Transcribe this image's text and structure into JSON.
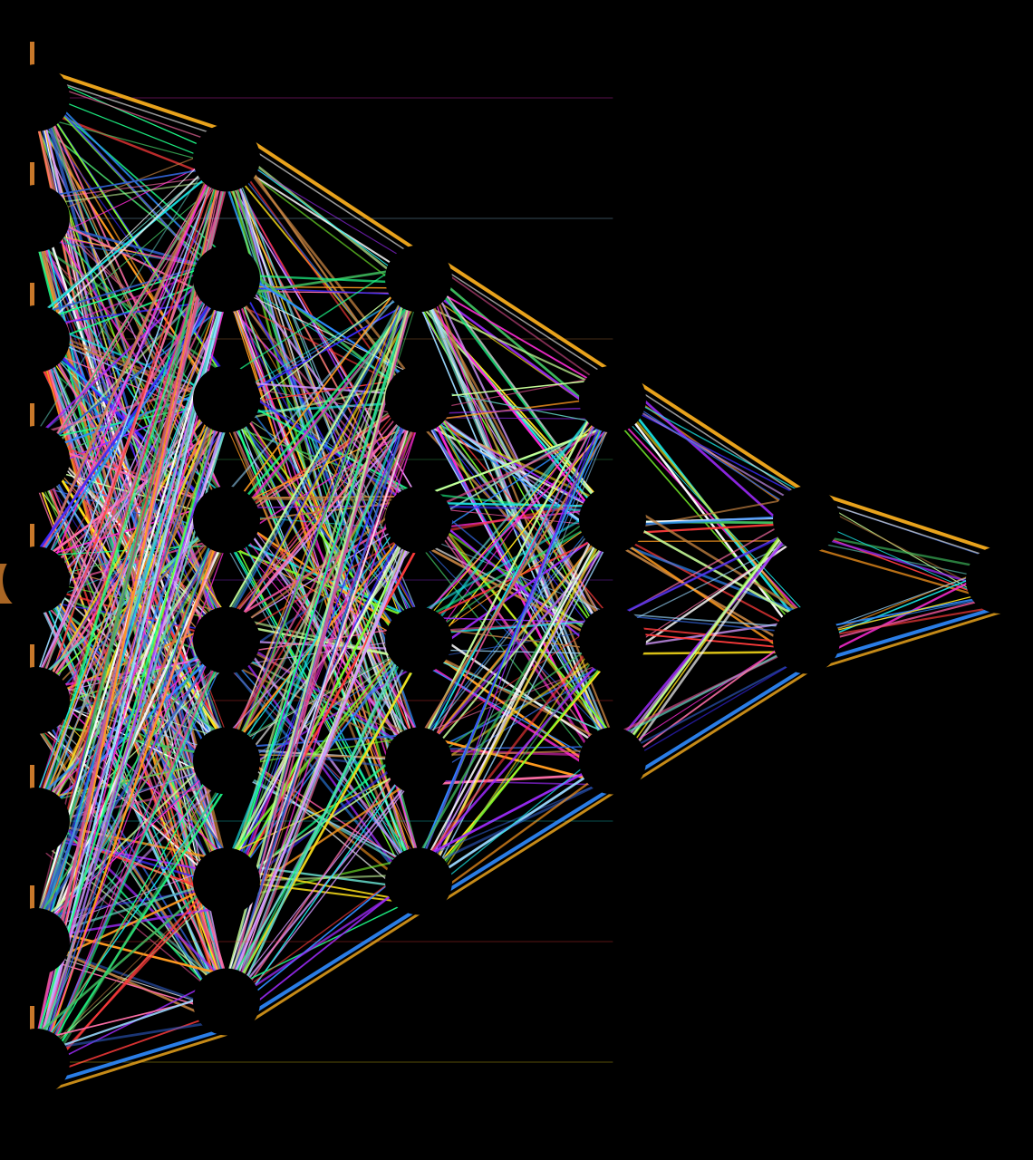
{
  "diagram": {
    "type": "neural-network",
    "background_color": "#000000",
    "node_color": "#000000",
    "layers": [
      {
        "index": 0,
        "node_count": 9
      },
      {
        "index": 1,
        "node_count": 8
      },
      {
        "index": 2,
        "node_count": 6
      },
      {
        "index": 3,
        "node_count": 4
      },
      {
        "index": 4,
        "node_count": 2
      },
      {
        "index": 5,
        "node_count": 1
      }
    ],
    "connection_style": "fully-connected",
    "edge_palette": [
      "#ff3b3b",
      "#ff9a1f",
      "#ffe21a",
      "#7dff2e",
      "#1eff8a",
      "#19e6e6",
      "#2f8bff",
      "#3b2bff",
      "#a02bff",
      "#ff2bd6",
      "#ff6fa8",
      "#ffffff",
      "#c8ff9a",
      "#9ad8ff",
      "#d49aff",
      "#40c060",
      "#e05090",
      "#3060d0",
      "#c08040",
      "#60d0c0"
    ],
    "accent_edge_color": "#e8a21c",
    "input_bar_color": "#c8782a"
  }
}
